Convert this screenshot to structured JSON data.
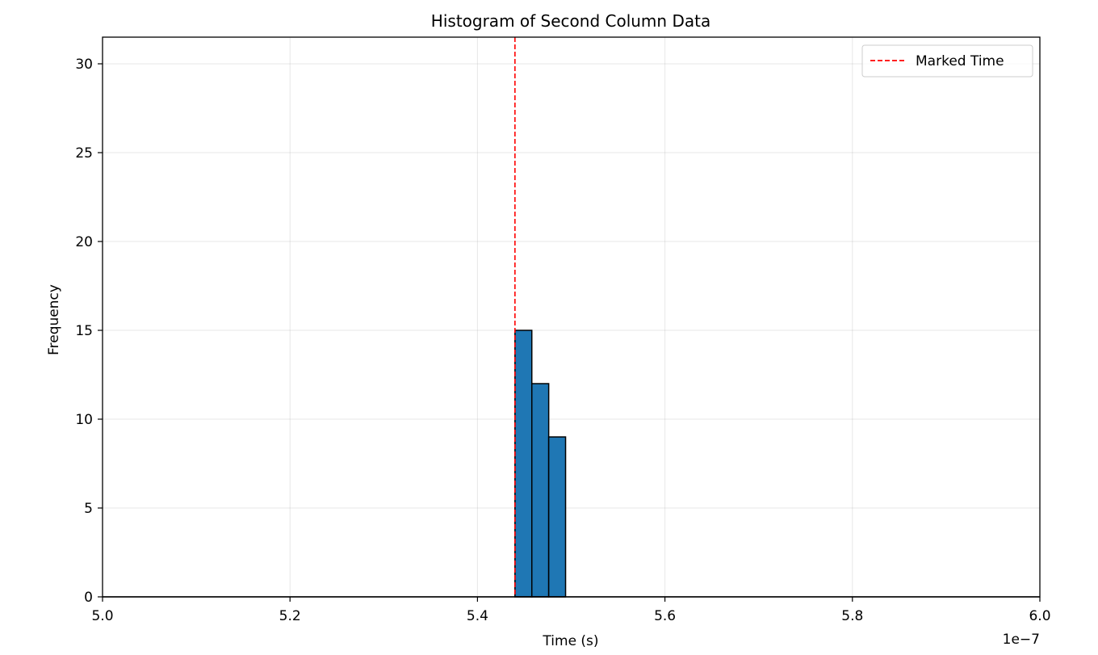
{
  "chart_data": {
    "type": "bar",
    "title": "Histogram of Second Column Data",
    "xlabel": "Time (s)",
    "ylabel": "Frequency",
    "x_offset_label": "1e−7",
    "xlim": [
      5.0,
      6.0
    ],
    "ylim": [
      0,
      31.5
    ],
    "xticks": [
      5.0,
      5.2,
      5.4,
      5.6,
      5.8,
      6.0
    ],
    "xtick_labels": [
      "5.0",
      "5.2",
      "5.4",
      "5.6",
      "5.8",
      "6.0"
    ],
    "yticks": [
      0,
      5,
      10,
      15,
      20,
      25,
      30
    ],
    "ytick_labels": [
      "0",
      "5",
      "10",
      "15",
      "20",
      "25",
      "30"
    ],
    "grid": true,
    "legend_position": "top-right",
    "bins": [
      {
        "x0": 5.44,
        "x1": 5.458,
        "count": 15
      },
      {
        "x0": 5.458,
        "x1": 5.476,
        "count": 12
      },
      {
        "x0": 5.476,
        "x1": 5.494,
        "count": 9
      }
    ],
    "bar_color": "#1f77b4",
    "bar_edge_color": "#000000",
    "marked_line": {
      "x": 5.44,
      "label": "Marked Time",
      "color": "#ff0000",
      "style": "dashed"
    }
  }
}
